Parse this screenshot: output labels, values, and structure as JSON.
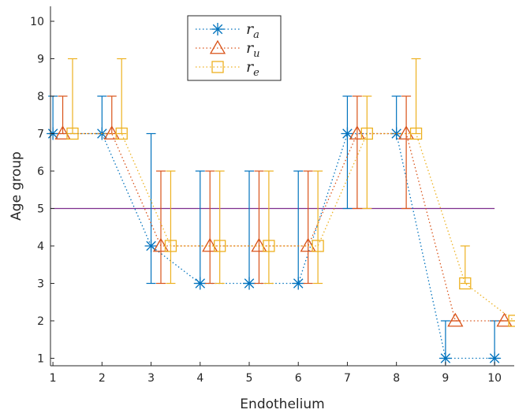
{
  "chart_data": {
    "type": "line",
    "xlabel": "Endothelium",
    "ylabel": "Age group",
    "xlim": [
      0.95,
      10.4
    ],
    "ylim": [
      0.8,
      10.4
    ],
    "x_ticks": [
      "1",
      "2",
      "3",
      "4",
      "5",
      "6",
      "7",
      "8",
      "9",
      "10"
    ],
    "y_ticks": [
      "1",
      "2",
      "3",
      "4",
      "5",
      "6",
      "7",
      "8",
      "9",
      "10"
    ],
    "grid": false,
    "legend_position": "top-center",
    "reference_line": {
      "y": 5,
      "color": "#7e2f8e"
    },
    "series": [
      {
        "name": "r_a",
        "legend_base": "r",
        "legend_sub": "a",
        "color": "#0072bd",
        "marker": "asterisk",
        "x": [
          1,
          2,
          3,
          4,
          5,
          6,
          7,
          8,
          9,
          10
        ],
        "values": [
          7,
          7,
          4,
          3,
          3,
          3,
          7,
          7,
          1,
          1
        ],
        "lower": [
          7,
          7,
          3,
          3,
          3,
          3,
          5,
          7,
          1,
          1
        ],
        "upper": [
          8,
          8,
          7,
          6,
          6,
          6,
          8,
          8,
          2,
          2
        ]
      },
      {
        "name": "r_u",
        "legend_base": "r",
        "legend_sub": "u",
        "color": "#d95319",
        "marker": "triangle",
        "x": [
          1.2,
          2.2,
          3.2,
          4.2,
          5.2,
          6.2,
          7.2,
          8.2,
          9.2,
          10.2
        ],
        "values": [
          7,
          7,
          4,
          4,
          4,
          4,
          7,
          7,
          2,
          2
        ],
        "lower": [
          7,
          7,
          3,
          3,
          3,
          3,
          5,
          5,
          2,
          2
        ],
        "upper": [
          8,
          8,
          6,
          6,
          6,
          6,
          8,
          8,
          2,
          2
        ]
      },
      {
        "name": "r_e",
        "legend_base": "r",
        "legend_sub": "e",
        "color": "#edb120",
        "marker": "square",
        "x": [
          1.4,
          2.4,
          3.4,
          4.4,
          5.4,
          6.4,
          7.4,
          8.4,
          9.4,
          10.4
        ],
        "values": [
          7,
          7,
          4,
          4,
          4,
          4,
          7,
          7,
          3,
          2
        ],
        "lower": [
          7,
          7,
          3,
          3,
          3,
          3,
          5,
          7,
          3,
          2
        ],
        "upper": [
          9,
          9,
          6,
          6,
          6,
          6,
          8,
          9,
          4,
          2
        ]
      }
    ]
  }
}
